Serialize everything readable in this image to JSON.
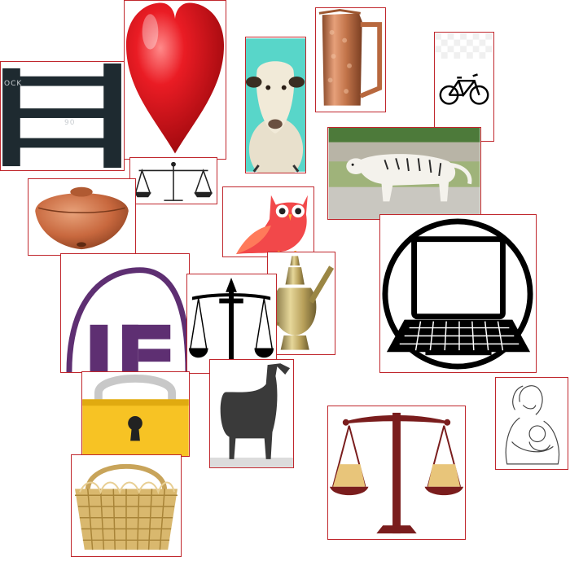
{
  "collage": {
    "tile_border_color": "#c0272d",
    "tiles": [
      {
        "icon": "fence-icon",
        "watermark_1": "OCK",
        "watermark_2": "90"
      },
      {
        "icon": "heart-icon"
      },
      {
        "icon": "sheep-icon"
      },
      {
        "icon": "copper-jug-icon"
      },
      {
        "icon": "bicycle-icon"
      },
      {
        "icon": "balance-scale-icon"
      },
      {
        "icon": "white-tiger-icon"
      },
      {
        "icon": "clay-pot-lid-icon"
      },
      {
        "icon": "owl-icon"
      },
      {
        "icon": "laptop-icon"
      },
      {
        "icon": "arch-logo-icon"
      },
      {
        "icon": "balance-scale-icon"
      },
      {
        "icon": "brass-pitcher-icon"
      },
      {
        "icon": "padlock-icon"
      },
      {
        "icon": "sheep-silhouette-icon"
      },
      {
        "icon": "balance-scale-icon"
      },
      {
        "icon": "mother-and-child-icon"
      },
      {
        "icon": "wicker-basket-icon"
      }
    ]
  }
}
